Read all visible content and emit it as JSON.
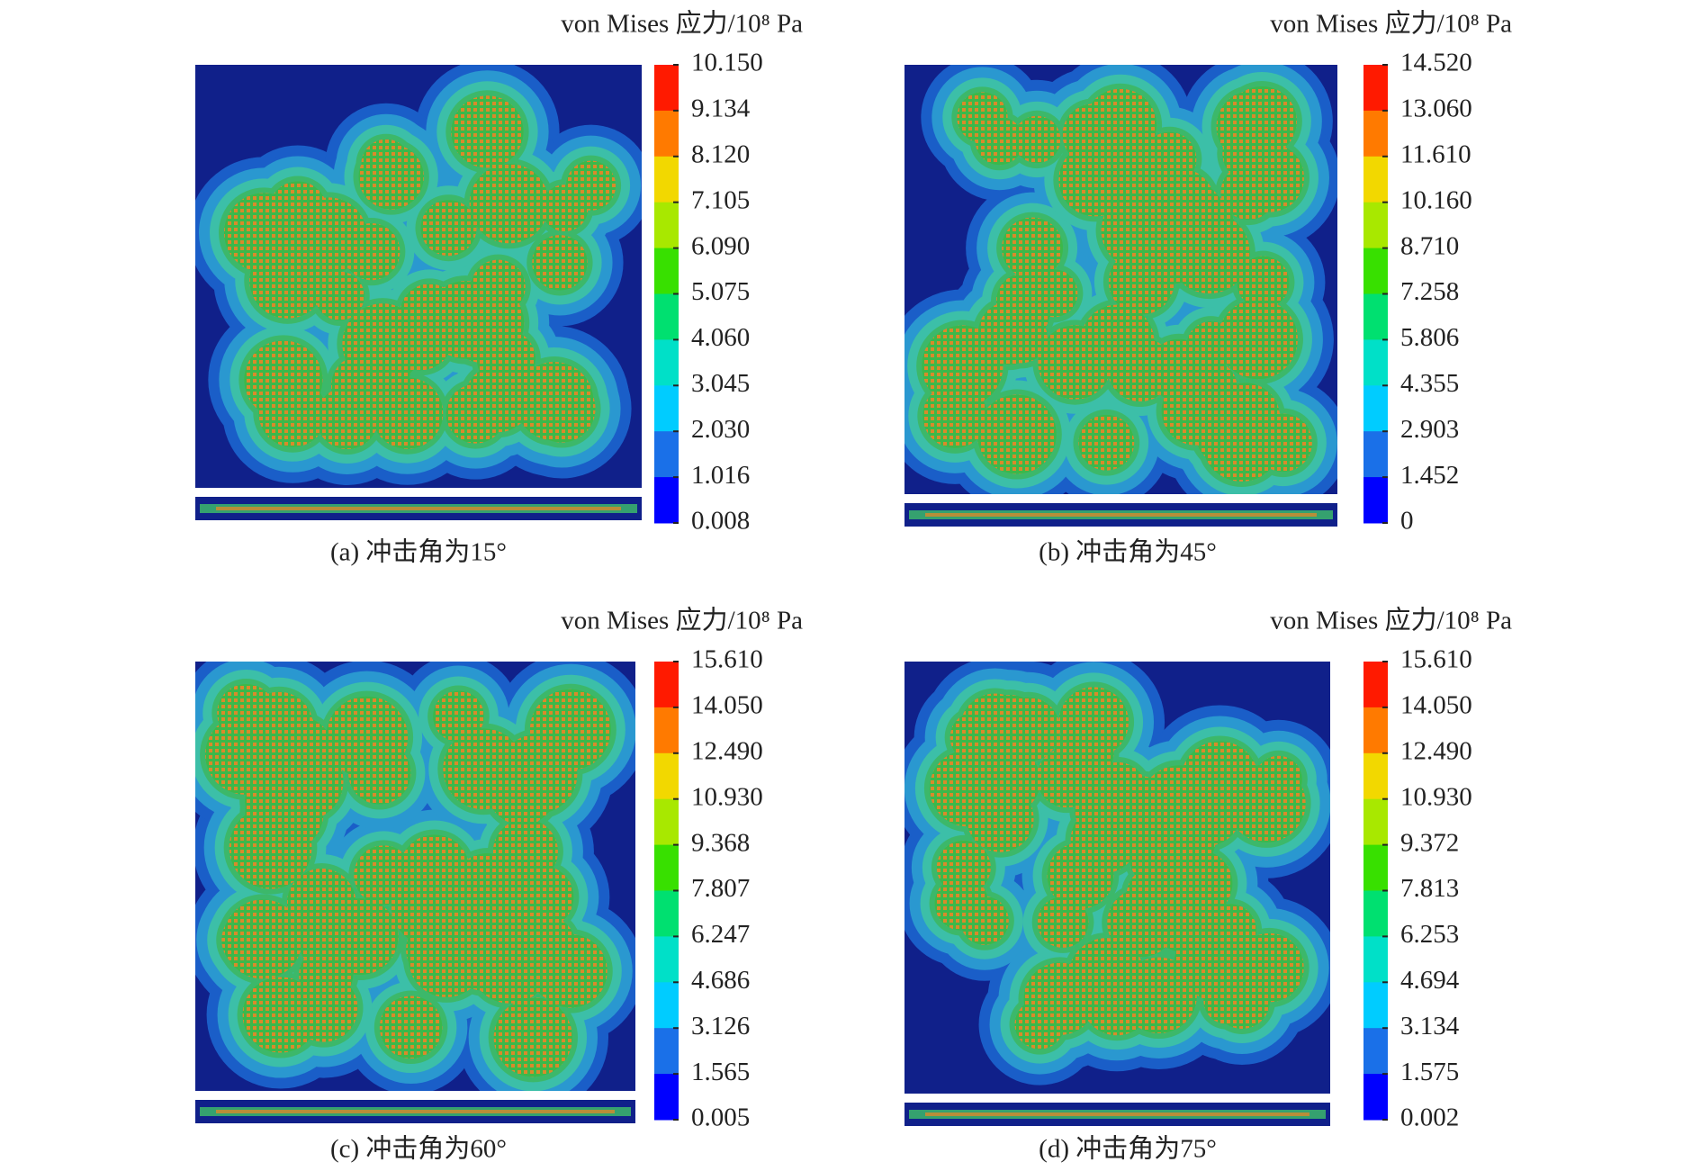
{
  "panels": [
    {
      "title": "von Mises 应力/10⁸ Pa",
      "colorbar_labels": [
        "10.150",
        "9.134",
        "8.120",
        "7.105",
        "6.090",
        "5.075",
        "4.060",
        "3.045",
        "2.030",
        "1.016",
        "0.008"
      ],
      "caption": "(a) 冲击角为15°"
    },
    {
      "title": "von Mises 应力/10⁸ Pa",
      "colorbar_labels": [
        "14.520",
        "13.060",
        "11.610",
        "10.160",
        "8.710",
        "7.258",
        "5.806",
        "4.355",
        "2.903",
        "1.452",
        "0"
      ],
      "caption": "(b) 冲击角为45°"
    },
    {
      "title": "von Mises 应力/10⁸ Pa",
      "colorbar_labels": [
        "15.610",
        "14.050",
        "12.490",
        "10.930",
        "9.368",
        "7.807",
        "6.247",
        "4.686",
        "3.126",
        "1.565",
        "0.005"
      ],
      "caption": "(c) 冲击角为60°"
    },
    {
      "title": "von Mises 应力/10⁸ Pa",
      "colorbar_labels": [
        "15.610",
        "14.050",
        "12.490",
        "10.930",
        "9.372",
        "7.813",
        "6.253",
        "4.694",
        "3.134",
        "1.575",
        "0.002"
      ],
      "caption": "(d) 冲击角为75°"
    }
  ]
}
